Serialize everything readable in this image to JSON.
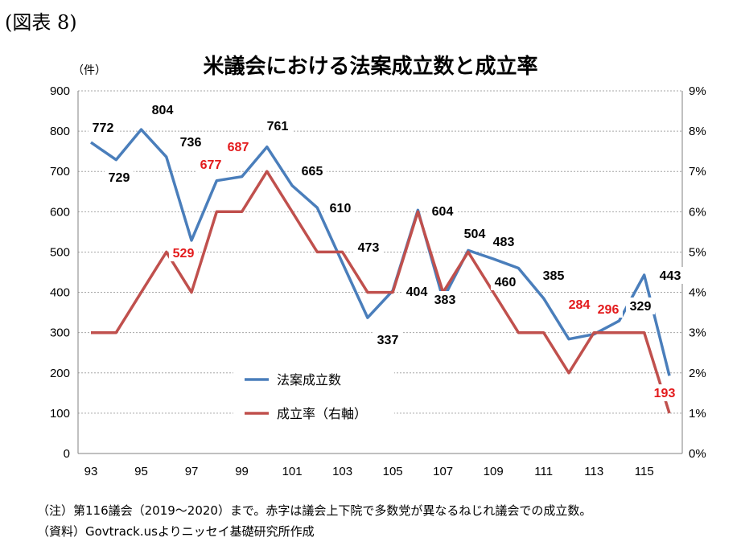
{
  "figure_label": "(図表 8)",
  "notes": {
    "note": "（注）第116議会（2019～2020）まで。赤字は議会上下院で多数党が異なるねじれ議会での成立数。",
    "source": "（資料）Govtrack.usよりニッセイ基礎研究所作成"
  },
  "chart_data": {
    "type": "line",
    "title": "米議会における法案成立数と成立率",
    "y_unit_label": "（件）",
    "x": [
      93,
      94,
      95,
      96,
      97,
      98,
      99,
      100,
      101,
      102,
      103,
      104,
      105,
      106,
      107,
      108,
      109,
      110,
      111,
      112,
      113,
      114,
      115,
      116
    ],
    "x_tick_labels": [
      "93",
      "95",
      "97",
      "99",
      "101",
      "103",
      "105",
      "107",
      "109",
      "111",
      "113",
      "115"
    ],
    "ylim": [
      0,
      900
    ],
    "y_ticks": [
      0,
      100,
      200,
      300,
      400,
      500,
      600,
      700,
      800,
      900
    ],
    "y2lim": [
      0,
      9
    ],
    "y2_ticks": [
      "0%",
      "1%",
      "2%",
      "3%",
      "4%",
      "5%",
      "6%",
      "7%",
      "8%",
      "9%"
    ],
    "grid": true,
    "legend_position": "bottom-center",
    "series": [
      {
        "name": "法案成立数",
        "axis": "left",
        "color": "#4a7ebb",
        "values": [
          772,
          729,
          804,
          736,
          529,
          677,
          687,
          761,
          665,
          610,
          473,
          337,
          404,
          604,
          383,
          504,
          483,
          460,
          385,
          284,
          296,
          329,
          443,
          193
        ],
        "labels": [
          "772",
          "729",
          "804",
          "736",
          "529",
          "677",
          "687",
          "761",
          "665",
          "610",
          "473",
          "337",
          "404",
          "604",
          "383",
          "504",
          "483",
          "460",
          "385",
          "284",
          "296",
          "329",
          "443",
          "193"
        ],
        "divided_congress": [
          false,
          false,
          false,
          false,
          true,
          true,
          true,
          false,
          false,
          false,
          false,
          false,
          false,
          false,
          false,
          false,
          false,
          false,
          false,
          true,
          true,
          false,
          false,
          true
        ]
      },
      {
        "name": "成立率（右軸）",
        "axis": "right",
        "color": "#c0504d",
        "values": [
          3,
          3,
          4,
          5,
          4,
          6,
          6,
          7,
          6,
          5,
          5,
          4,
          4,
          6,
          4,
          5,
          4,
          3,
          3,
          2,
          3,
          3,
          3,
          1
        ]
      }
    ],
    "label_colors": {
      "normal": "#000000",
      "divided": "#e31a1c"
    }
  }
}
